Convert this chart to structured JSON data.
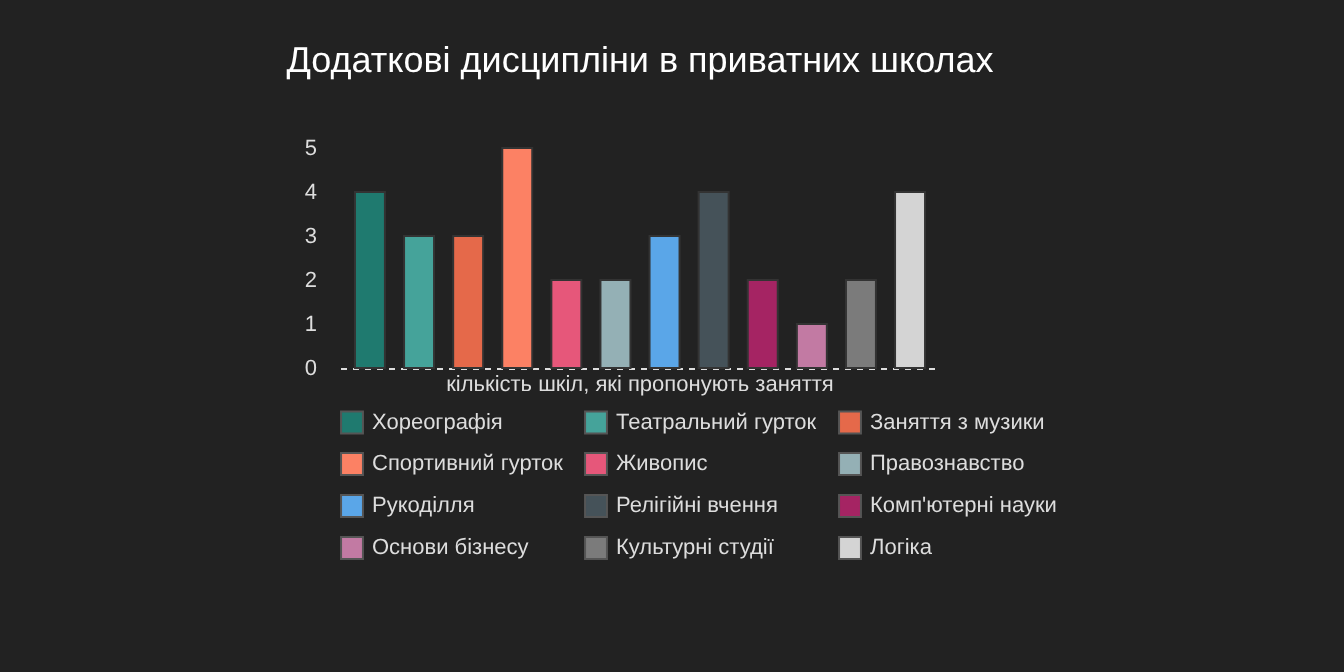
{
  "chart_data": {
    "type": "bar",
    "title": "Додаткові дисципліни в приватних школах",
    "categories": [
      "кількість шкіл, які пропонують заняття"
    ],
    "series": [
      {
        "name": "Хореографія",
        "color": "#1f7a6f",
        "values": [
          4
        ]
      },
      {
        "name": "Театральний гурток",
        "color": "#45a39a",
        "values": [
          3
        ]
      },
      {
        "name": "Заняття з музики",
        "color": "#e5694a",
        "values": [
          3
        ]
      },
      {
        "name": "Спортивний гурток",
        "color": "#fc8164",
        "values": [
          5
        ]
      },
      {
        "name": "Живопис",
        "color": "#e6577a",
        "values": [
          2
        ]
      },
      {
        "name": "Правознавство",
        "color": "#94b0b5",
        "values": [
          2
        ]
      },
      {
        "name": "Рукоділля",
        "color": "#5aa6e8",
        "values": [
          3
        ]
      },
      {
        "name": "Релігійні вчення",
        "color": "#455259",
        "values": [
          4
        ]
      },
      {
        "name": "Комп'ютерні науки",
        "color": "#a52463",
        "values": [
          2
        ]
      },
      {
        "name": "Основи бізнесу",
        "color": "#c27aa3",
        "values": [
          1
        ]
      },
      {
        "name": "Культурні студії",
        "color": "#7b7b7b",
        "values": [
          2
        ]
      },
      {
        "name": "Логіка",
        "color": "#d4d4d4",
        "values": [
          4
        ]
      }
    ],
    "ylim": [
      0,
      5
    ],
    "yticks": [
      0,
      1,
      2,
      3,
      4,
      5
    ],
    "grid": false,
    "legend": "bottom"
  }
}
